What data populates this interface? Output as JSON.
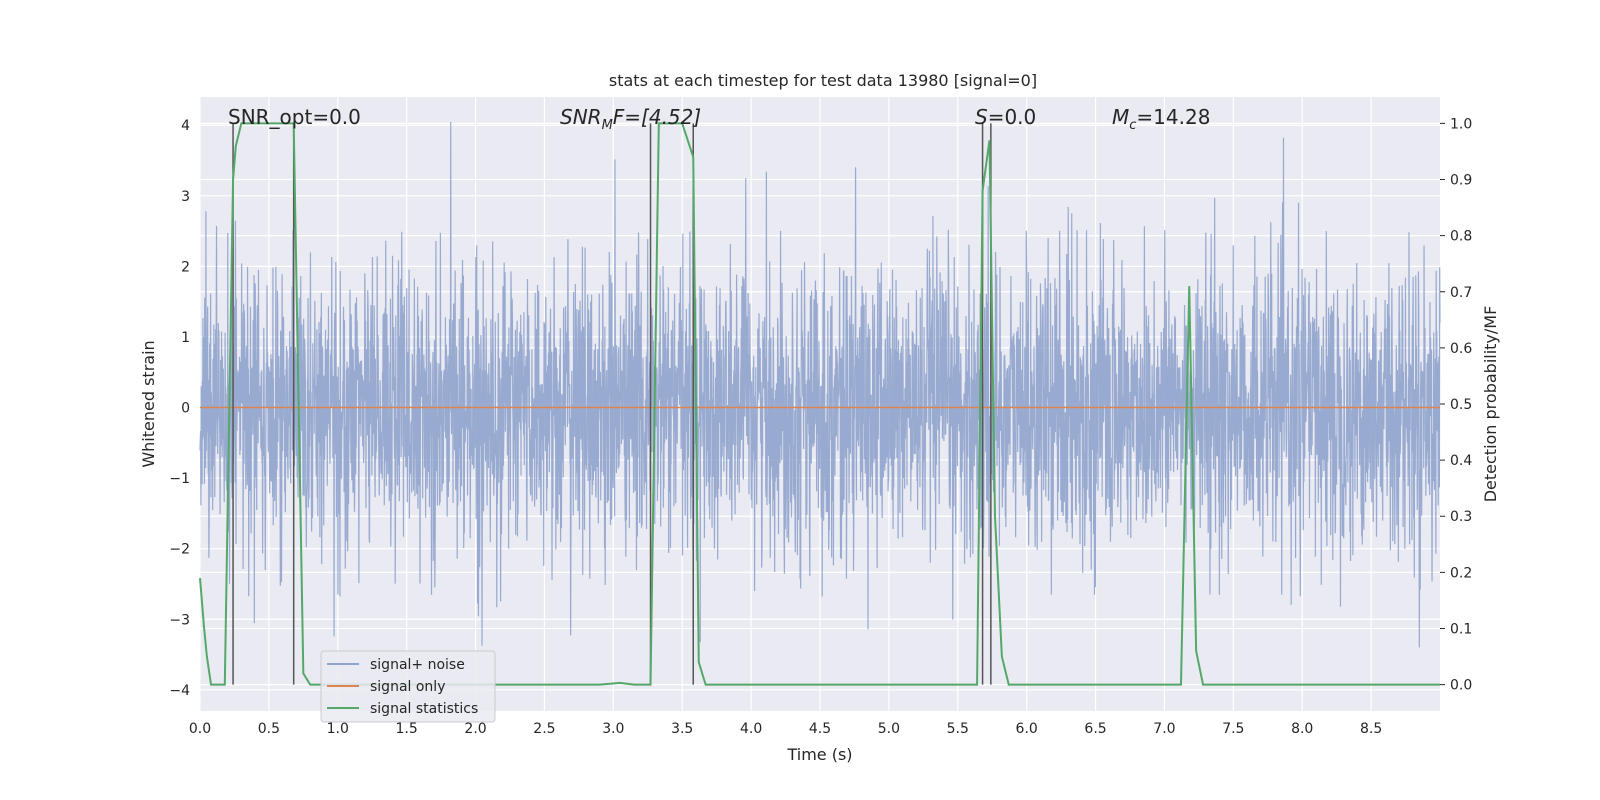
{
  "chart_data": {
    "type": "line",
    "title": "stats at each timestep for test data 13980 [signal=0]",
    "xlabel": "Time (s)",
    "ylabel": "Whitened strain",
    "ylabel_right": "Detection probability/MF",
    "xlim": [
      0.0,
      9.0
    ],
    "ylim": [
      -4.3,
      4.4
    ],
    "ylim_right": [
      -0.047,
      1.047
    ],
    "xticks": [
      "0.0",
      "0.5",
      "1.0",
      "1.5",
      "2.0",
      "2.5",
      "3.0",
      "3.5",
      "4.0",
      "4.5",
      "5.0",
      "5.5",
      "6.0",
      "6.5",
      "7.0",
      "7.5",
      "8.0",
      "8.5"
    ],
    "yticks": [
      "4",
      "3",
      "2",
      "1",
      "0",
      "−1",
      "−2",
      "−3",
      "−4"
    ],
    "yticks_right": [
      "1.0",
      "0.9",
      "0.8",
      "0.7",
      "0.6",
      "0.5",
      "0.4",
      "0.3",
      "0.2",
      "0.1",
      "0.0"
    ],
    "annotations": {
      "snr_opt": "SNR_opt=0.0",
      "snr_mf_base": "SNR",
      "snr_mf_sub": "M",
      "snr_mf_rest": "F=[4.52]",
      "s_italic": "S",
      "s_value": "=0.0",
      "mc_base": "M",
      "mc_sub": "c",
      "mc_value": "=14.28"
    },
    "legend": {
      "position": "lower-left",
      "entries": [
        "signal+ noise",
        "signal only",
        "signal statistics"
      ]
    },
    "series": [
      {
        "name": "signal+ noise",
        "axis": "left",
        "color": "#8fa3cc",
        "description": "whitened noise, approx. zero mean, amplitude up to about 4"
      },
      {
        "name": "signal only",
        "axis": "left",
        "color": "#dd8452",
        "x": [
          0.0,
          9.0
        ],
        "values": [
          0.0,
          0.0
        ]
      },
      {
        "name": "signal statistics",
        "axis": "right",
        "color": "#55a868",
        "x": [
          0.0,
          0.03,
          0.05,
          0.08,
          0.18,
          0.24,
          0.26,
          0.3,
          0.68,
          0.7,
          0.75,
          0.8,
          0.9,
          2.9,
          3.05,
          3.15,
          3.27,
          3.33,
          3.5,
          3.58,
          3.62,
          3.67,
          5.6,
          5.64,
          5.68,
          5.73,
          5.77,
          5.82,
          5.87,
          7.12,
          7.18,
          7.23,
          7.28,
          9.0
        ],
        "values": [
          0.19,
          0.1,
          0.05,
          0.0,
          0.0,
          0.9,
          0.96,
          1.0,
          1.0,
          0.72,
          0.02,
          0.0,
          0.0,
          0.0,
          0.003,
          0.0,
          0.0,
          1.0,
          1.0,
          0.94,
          0.04,
          0.0,
          0.0,
          0.0,
          0.88,
          0.97,
          0.3,
          0.05,
          0.0,
          0.0,
          0.71,
          0.06,
          0.0,
          0.0
        ]
      }
    ],
    "vlines": [
      0.24,
      0.68,
      3.27,
      3.58,
      5.68,
      5.74
    ],
    "colors": {
      "axes_bg": "#eaeaf2",
      "grid": "#ffffff",
      "vline": "#555555",
      "text": "#262626"
    }
  }
}
